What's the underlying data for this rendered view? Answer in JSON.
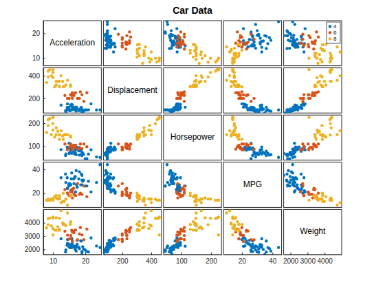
{
  "chart_data": {
    "type": "scatter_matrix",
    "title": "Car Data",
    "variables": [
      "Acceleration",
      "Displacement",
      "Horsepower",
      "MPG",
      "Weight"
    ],
    "limits": [
      [
        7,
        25
      ],
      [
        70,
        470
      ],
      [
        40,
        235
      ],
      [
        8,
        46
      ],
      [
        1600,
        5000
      ]
    ],
    "ticks": [
      [
        10,
        20
      ],
      [
        200,
        400
      ],
      [
        100,
        200
      ],
      [
        20,
        40
      ],
      [
        2000,
        3000,
        4000
      ]
    ],
    "legend": "northeast",
    "series": [
      {
        "name": "4",
        "color": "#0072BD",
        "values": [
          [
            15.5,
            97,
            88,
            27,
            2130
          ],
          [
            14.5,
            97,
            88,
            24,
            2430
          ],
          [
            20.5,
            97,
            46,
            26,
            1835
          ],
          [
            17.5,
            110,
            87,
            25,
            2672
          ],
          [
            14.5,
            107,
            90,
            24,
            2430
          ],
          [
            17.5,
            104,
            95,
            25,
            2375
          ],
          [
            15,
            121,
            113,
            26,
            2234
          ],
          [
            19,
            71,
            65,
            31,
            1773
          ],
          [
            19,
            72,
            69,
            35,
            1613
          ],
          [
            19,
            97,
            60,
            27,
            1834
          ],
          [
            16.5,
            116,
            75,
            28,
            2158
          ],
          [
            15.5,
            140,
            90,
            22,
            2264
          ],
          [
            17,
            122,
            86,
            21,
            2226
          ],
          [
            20,
            97,
            46,
            26,
            1950
          ],
          [
            18,
            98,
            80,
            32,
            2164
          ],
          [
            16,
            120,
            97,
            23,
            2506
          ],
          [
            15,
            96,
            69,
            28,
            2189
          ],
          [
            14,
            79,
            67,
            29,
            1950
          ],
          [
            16,
            140,
            83,
            23,
            2639
          ],
          [
            14.9,
            108,
            93,
            27,
            2391
          ],
          [
            19.5,
            85,
            65,
            31,
            2020
          ],
          [
            16.7,
            97,
            67,
            33,
            2145
          ],
          [
            15.3,
            90,
            75,
            28,
            2125
          ],
          [
            21,
            98,
            66,
            30,
            1800
          ],
          [
            14.5,
            151,
            90,
            20,
            2735
          ],
          [
            15.8,
            146,
            97,
            22,
            2815
          ],
          [
            18.6,
            112,
            88,
            27,
            2640
          ],
          [
            21.8,
            151,
            85,
            21,
            2855
          ],
          [
            24.6,
            97,
            52,
            44,
            2130
          ],
          [
            17.3,
            120,
            88,
            27,
            2160
          ],
          [
            13.9,
            91,
            60,
            36,
            1800
          ],
          [
            18.2,
            89,
            62,
            38,
            2050
          ],
          [
            15.8,
            98,
            70,
            37,
            2125
          ],
          [
            17.2,
            86,
            64,
            39,
            1875
          ],
          [
            16.4,
            108,
            75,
            32,
            2265
          ],
          [
            19.2,
            97,
            71,
            30,
            2190
          ],
          [
            14.4,
            119,
            97,
            33,
            2300
          ],
          [
            15.7,
            135,
            84,
            32,
            2370
          ],
          [
            23.5,
            97,
            54,
            29,
            2254
          ],
          [
            12.5,
            140,
            86,
            33,
            2790
          ],
          [
            16.9,
            105,
            74,
            34,
            1980
          ],
          [
            18.8,
            120,
            79,
            36,
            2625
          ]
        ]
      },
      {
        "name": "6",
        "color": "#D95319",
        "values": [
          [
            15,
            199,
            97,
            18,
            2774
          ],
          [
            16,
            200,
            85,
            21,
            2587
          ],
          [
            15.5,
            232,
            100,
            18,
            2789
          ],
          [
            16,
            250,
            88,
            16,
            3302
          ],
          [
            19,
            232,
            90,
            19,
            3085
          ],
          [
            18.5,
            258,
            110,
            20,
            3632
          ],
          [
            16.5,
            225,
            95,
            19,
            3264
          ],
          [
            17,
            250,
            105,
            18,
            3459
          ],
          [
            15.5,
            231,
            110,
            21,
            3039
          ],
          [
            14.5,
            200,
            85,
            20,
            3070
          ],
          [
            13.7,
            225,
            110,
            23,
            3360
          ],
          [
            18.2,
            200,
            95,
            19,
            3155
          ],
          [
            16.4,
            231,
            105,
            24,
            3380
          ],
          [
            19.6,
            173,
            110,
            26,
            2725
          ],
          [
            15.8,
            225,
            100,
            23,
            3430
          ],
          [
            17.6,
            200,
            88,
            28,
            2720
          ],
          [
            20.5,
            250,
            98,
            17,
            3525
          ]
        ]
      },
      {
        "name": "8",
        "color": "#EDB120",
        "values": [
          [
            12,
            307,
            130,
            18,
            3504
          ],
          [
            11.5,
            350,
            165,
            15,
            3693
          ],
          [
            11,
            318,
            150,
            18,
            3436
          ],
          [
            12,
            304,
            150,
            16,
            3433
          ],
          [
            10.5,
            302,
            140,
            17,
            3449
          ],
          [
            10,
            429,
            198,
            15,
            4341
          ],
          [
            9,
            454,
            220,
            14,
            4354
          ],
          [
            8.5,
            440,
            215,
            14,
            4312
          ],
          [
            10,
            455,
            225,
            14,
            4425
          ],
          [
            8.5,
            390,
            190,
            15,
            3850
          ],
          [
            10,
            383,
            170,
            15,
            3563
          ],
          [
            8,
            340,
            160,
            14,
            3609
          ],
          [
            9.5,
            400,
            150,
            15,
            3761
          ],
          [
            10,
            455,
            225,
            14,
            3086
          ],
          [
            13,
            350,
            145,
            13,
            3988
          ],
          [
            12.5,
            400,
            167,
            12,
            4906
          ],
          [
            14,
            318,
            150,
            15,
            3777
          ],
          [
            13.5,
            304,
            150,
            13,
            3892
          ],
          [
            11,
            350,
            180,
            16,
            4380
          ],
          [
            12,
            351,
            149,
            15,
            4335
          ],
          [
            15.5,
            318,
            140,
            17,
            4080
          ],
          [
            13.2,
            302,
            130,
            20,
            3870
          ],
          [
            15.4,
            305,
            145,
            18,
            3880
          ],
          [
            14.5,
            360,
            150,
            10,
            4735
          ]
        ]
      }
    ]
  }
}
